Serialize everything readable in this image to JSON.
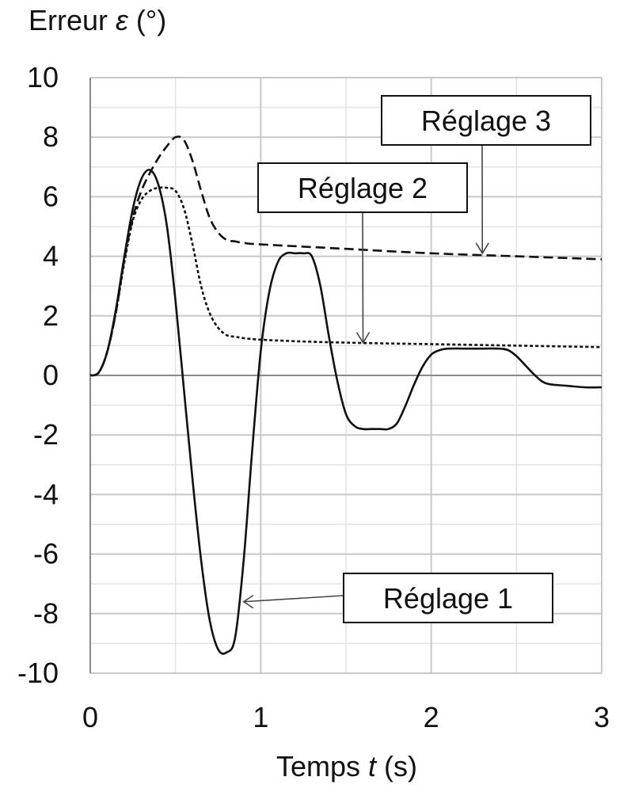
{
  "chart_data": {
    "type": "line",
    "ylabel_text": "Erreur ",
    "ylabel_symbol": "ε",
    "ylabel_unit": " (°)",
    "xlabel_text": "Temps ",
    "xlabel_symbol": "t",
    "xlabel_unit": " (s)",
    "xlim": [
      0,
      3
    ],
    "ylim": [
      -10,
      10
    ],
    "x_ticks": [
      "0",
      "1",
      "2",
      "3"
    ],
    "y_ticks": [
      "10",
      "8",
      "6",
      "4",
      "2",
      "0",
      "-2",
      "-4",
      "-6",
      "-8",
      "-10"
    ],
    "grid": true,
    "series": [
      {
        "name": "Réglage 1",
        "style": "solid",
        "x": [
          0,
          0.05,
          0.1,
          0.15,
          0.2,
          0.25,
          0.3,
          0.35,
          0.4,
          0.45,
          0.5,
          0.55,
          0.6,
          0.65,
          0.7,
          0.75,
          0.8,
          0.85,
          0.9,
          0.95,
          1.0,
          1.05,
          1.1,
          1.15,
          1.2,
          1.25,
          1.3,
          1.35,
          1.4,
          1.45,
          1.5,
          1.55,
          1.6,
          1.65,
          1.7,
          1.75,
          1.8,
          1.85,
          1.9,
          1.95,
          2.0,
          2.05,
          2.1,
          2.2,
          2.3,
          2.4,
          2.45,
          2.5,
          2.55,
          2.6,
          2.65,
          2.7,
          2.8,
          2.9,
          3.0
        ],
        "y": [
          0,
          0.1,
          0.8,
          2.2,
          4.0,
          5.6,
          6.6,
          6.9,
          6.4,
          5.0,
          2.5,
          -0.5,
          -3.5,
          -6.2,
          -8.2,
          -9.2,
          -9.3,
          -8.8,
          -6.2,
          -2.5,
          0.8,
          2.8,
          3.8,
          4.1,
          4.1,
          4.1,
          4.0,
          3.0,
          1.3,
          -0.2,
          -1.3,
          -1.7,
          -1.8,
          -1.8,
          -1.8,
          -1.8,
          -1.6,
          -1.0,
          -0.3,
          0.3,
          0.7,
          0.85,
          0.9,
          0.9,
          0.9,
          0.9,
          0.85,
          0.65,
          0.35,
          0.05,
          -0.2,
          -0.3,
          -0.35,
          -0.4,
          -0.4
        ]
      },
      {
        "name": "Réglage 2",
        "style": "dotted",
        "x": [
          0,
          0.05,
          0.1,
          0.15,
          0.2,
          0.25,
          0.3,
          0.35,
          0.4,
          0.45,
          0.5,
          0.55,
          0.6,
          0.65,
          0.7,
          0.75,
          0.8,
          0.85,
          0.9,
          1.0,
          1.2,
          1.5,
          2.0,
          2.5,
          3.0
        ],
        "y": [
          0,
          0.1,
          0.8,
          2.1,
          3.8,
          5.2,
          5.9,
          6.2,
          6.3,
          6.3,
          6.2,
          5.6,
          4.4,
          3.0,
          2.1,
          1.6,
          1.35,
          1.3,
          1.25,
          1.2,
          1.15,
          1.1,
          1.05,
          1.0,
          0.95
        ]
      },
      {
        "name": "Réglage 3",
        "style": "dashed",
        "x": [
          0,
          0.05,
          0.1,
          0.15,
          0.2,
          0.25,
          0.3,
          0.35,
          0.4,
          0.45,
          0.5,
          0.55,
          0.6,
          0.65,
          0.7,
          0.75,
          0.8,
          0.85,
          0.9,
          1.0,
          1.5,
          2.0,
          2.5,
          3.0
        ],
        "y": [
          0,
          0.1,
          0.8,
          2.1,
          3.9,
          5.3,
          6.2,
          6.8,
          7.3,
          7.7,
          8.0,
          7.9,
          7.2,
          6.2,
          5.3,
          4.8,
          4.55,
          4.5,
          4.45,
          4.4,
          4.25,
          4.1,
          4.0,
          3.9
        ]
      }
    ],
    "annotations": [
      {
        "text": "Réglage 1",
        "series": "Réglage 1",
        "arrow_at": [
          0.9,
          -7.6
        ]
      },
      {
        "text": "Réglage 2",
        "series": "Réglage 2",
        "arrow_at": [
          1.6,
          1.1
        ]
      },
      {
        "text": "Réglage 3",
        "series": "Réglage 3",
        "arrow_at": [
          2.3,
          4.1
        ]
      }
    ]
  }
}
